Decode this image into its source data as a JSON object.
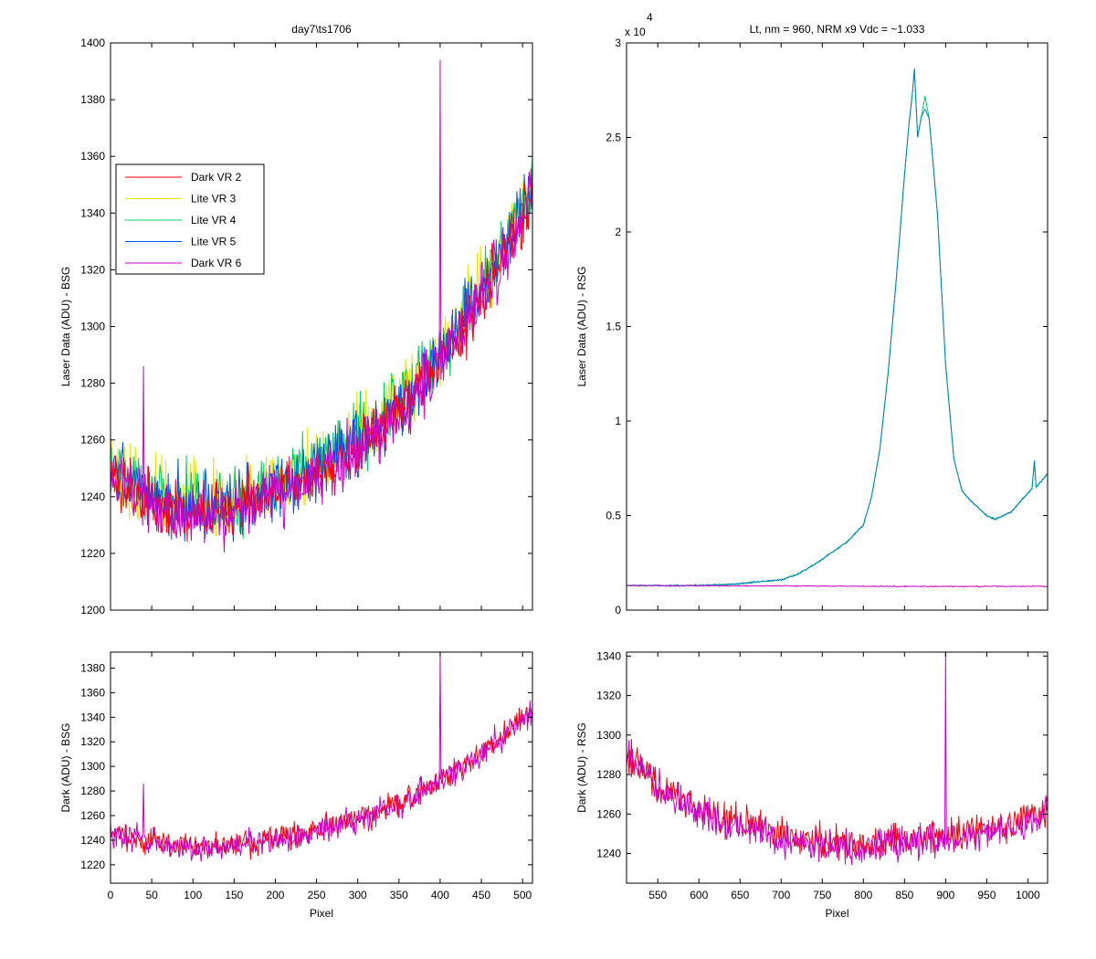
{
  "chart_data": [
    {
      "id": "top-left",
      "type": "line",
      "title": "day7\\ts1706",
      "xlabel": "",
      "ylabel": "Laser Data (ADU) - BSG",
      "xlim": [
        0,
        512
      ],
      "ylim": [
        1200,
        1400
      ],
      "yticks": [
        1200,
        1220,
        1240,
        1260,
        1280,
        1300,
        1320,
        1340,
        1360,
        1380,
        1400
      ],
      "xticks": [
        0,
        50,
        100,
        150,
        200,
        250,
        300,
        350,
        400,
        450,
        500
      ],
      "show_xtick_labels": false,
      "legend": {
        "placement": "upper-left",
        "entries": [
          {
            "name": "Dark VR 2",
            "color": "#ff0000"
          },
          {
            "name": "Lite VR 3",
            "color": "#e6e600"
          },
          {
            "name": "Lite VR 4",
            "color": "#00d060"
          },
          {
            "name": "Lite VR 5",
            "color": "#0050ff"
          },
          {
            "name": "Dark VR 6",
            "color": "#cc00cc"
          }
        ]
      },
      "series": [
        {
          "name": "Lite VR 3",
          "color": "#e6e600",
          "x": [
            0,
            40,
            80,
            120,
            160,
            200,
            240,
            280,
            320,
            360,
            400,
            440,
            480,
            512
          ],
          "values": [
            1250,
            1243,
            1240,
            1238,
            1240,
            1245,
            1250,
            1258,
            1266,
            1278,
            1292,
            1310,
            1332,
            1350
          ],
          "noise": 12,
          "spikes": []
        },
        {
          "name": "Lite VR 4",
          "color": "#00d060",
          "x": [
            0,
            40,
            80,
            120,
            160,
            200,
            240,
            280,
            320,
            360,
            400,
            440,
            480,
            512
          ],
          "values": [
            1249,
            1242,
            1239,
            1237,
            1239,
            1244,
            1249,
            1257,
            1265,
            1277,
            1291,
            1309,
            1331,
            1349
          ],
          "noise": 11,
          "spikes": []
        },
        {
          "name": "Lite VR 5",
          "color": "#0050ff",
          "x": [
            0,
            40,
            80,
            120,
            160,
            200,
            240,
            280,
            320,
            360,
            400,
            440,
            480,
            512
          ],
          "values": [
            1248,
            1241,
            1237,
            1235,
            1237,
            1242,
            1247,
            1255,
            1263,
            1275,
            1289,
            1307,
            1329,
            1347
          ],
          "noise": 11,
          "spikes": []
        },
        {
          "name": "Dark VR 2",
          "color": "#ff0000",
          "x": [
            0,
            40,
            80,
            120,
            160,
            200,
            240,
            280,
            320,
            360,
            400,
            440,
            480,
            512
          ],
          "values": [
            1247,
            1240,
            1236,
            1234,
            1236,
            1241,
            1246,
            1254,
            1262,
            1274,
            1288,
            1306,
            1328,
            1346
          ],
          "noise": 10,
          "spikes": []
        },
        {
          "name": "Dark VR 6",
          "color": "#cc00cc",
          "x": [
            0,
            40,
            80,
            120,
            160,
            200,
            240,
            280,
            320,
            360,
            400,
            440,
            480,
            512
          ],
          "values": [
            1246,
            1239,
            1235,
            1233,
            1235,
            1240,
            1245,
            1253,
            1261,
            1273,
            1287,
            1305,
            1327,
            1345
          ],
          "noise": 10,
          "spikes": [
            {
              "x": 40,
              "y": 1286
            },
            {
              "x": 400,
              "y": 1394
            }
          ]
        }
      ]
    },
    {
      "id": "top-right",
      "type": "line",
      "title": "Lt, nm = 960, NRM x9 Vdc = ~1.033",
      "xlabel": "",
      "ylabel": "Laser Data (ADU) - RSG",
      "xlim": [
        512,
        1024
      ],
      "ylim": [
        0,
        30000
      ],
      "ytick_values": [
        0,
        5000,
        10000,
        15000,
        20000,
        25000,
        30000
      ],
      "ytick_labels": [
        "0",
        "0.5",
        "1",
        "1.5",
        "2",
        "2.5",
        "3"
      ],
      "exponent_label_base": "x 10",
      "exponent_label_power": "4",
      "xticks": [
        550,
        600,
        650,
        700,
        750,
        800,
        850,
        900,
        950,
        1000
      ],
      "show_xtick_labels": false,
      "series": [
        {
          "name": "Lite VR 4",
          "color": "#00d060",
          "x": [
            512,
            600,
            650,
            700,
            720,
            740,
            760,
            780,
            800,
            810,
            820,
            830,
            840,
            850,
            855,
            860,
            862,
            866,
            870,
            875,
            880,
            890,
            900,
            910,
            920,
            930,
            940,
            950,
            960,
            980,
            1000,
            1005,
            1008,
            1010,
            1024
          ],
          "values": [
            1300,
            1300,
            1400,
            1600,
            1900,
            2400,
            3000,
            3600,
            4500,
            6000,
            8500,
            12500,
            17500,
            23000,
            25500,
            27500,
            28600,
            25000,
            26000,
            27200,
            26000,
            21000,
            13000,
            8000,
            6300,
            5800,
            5400,
            5000,
            4800,
            5200,
            6200,
            6400,
            7900,
            6500,
            7200
          ],
          "noise": 40,
          "spikes": []
        },
        {
          "name": "Lite VR 5",
          "color": "#0080c0",
          "x": [
            512,
            600,
            650,
            700,
            720,
            740,
            760,
            780,
            800,
            810,
            820,
            830,
            840,
            850,
            855,
            860,
            862,
            866,
            870,
            875,
            880,
            890,
            900,
            910,
            920,
            930,
            940,
            950,
            960,
            980,
            1000,
            1005,
            1008,
            1010,
            1024
          ],
          "values": [
            1300,
            1300,
            1400,
            1600,
            1900,
            2400,
            3000,
            3600,
            4500,
            6000,
            8500,
            12500,
            17500,
            23000,
            25500,
            27500,
            28600,
            25000,
            26000,
            26500,
            26000,
            21000,
            13000,
            8000,
            6300,
            5800,
            5400,
            5000,
            4800,
            5200,
            6200,
            6400,
            7900,
            6500,
            7200
          ],
          "noise": 40,
          "spikes": []
        },
        {
          "name": "Dark VR 6",
          "color": "#cc00cc",
          "x": [
            512,
            700,
            900,
            1024
          ],
          "values": [
            1300,
            1280,
            1250,
            1260
          ],
          "noise": 25,
          "spikes": []
        }
      ]
    },
    {
      "id": "bottom-left",
      "type": "line",
      "title": "",
      "xlabel": "Pixel",
      "ylabel": "Dark (ADU) - BSG",
      "xlim": [
        0,
        512
      ],
      "ylim": [
        1205,
        1393
      ],
      "yticks": [
        1220,
        1240,
        1260,
        1280,
        1300,
        1320,
        1340,
        1360,
        1380
      ],
      "xticks": [
        0,
        50,
        100,
        150,
        200,
        250,
        300,
        350,
        400,
        450,
        500
      ],
      "show_xtick_labels": true,
      "series": [
        {
          "name": "Dark VR 2",
          "color": "#ff0000",
          "x": [
            0,
            40,
            80,
            120,
            160,
            200,
            240,
            280,
            320,
            360,
            400,
            440,
            480,
            512
          ],
          "values": [
            1247,
            1240,
            1236,
            1234,
            1236,
            1241,
            1246,
            1254,
            1262,
            1274,
            1288,
            1306,
            1328,
            1346
          ],
          "noise": 10,
          "spikes": []
        },
        {
          "name": "Dark VR 6",
          "color": "#cc00cc",
          "x": [
            0,
            40,
            80,
            120,
            160,
            200,
            240,
            280,
            320,
            360,
            400,
            440,
            480,
            512
          ],
          "values": [
            1246,
            1239,
            1235,
            1233,
            1235,
            1240,
            1245,
            1253,
            1261,
            1273,
            1287,
            1305,
            1327,
            1345
          ],
          "noise": 10,
          "spikes": [
            {
              "x": 40,
              "y": 1286
            },
            {
              "x": 400,
              "y": 1393
            }
          ]
        }
      ]
    },
    {
      "id": "bottom-right",
      "type": "line",
      "title": "",
      "xlabel": "Pixel",
      "ylabel": "Dark (ADU) - RSG",
      "xlim": [
        512,
        1024
      ],
      "ylim": [
        1225,
        1342
      ],
      "yticks": [
        1240,
        1260,
        1280,
        1300,
        1320,
        1340
      ],
      "xticks": [
        550,
        600,
        650,
        700,
        750,
        800,
        850,
        900,
        950,
        1000
      ],
      "show_xtick_labels": true,
      "series": [
        {
          "name": "Dark VR 2",
          "color": "#ff0000",
          "x": [
            512,
            530,
            550,
            600,
            650,
            700,
            750,
            800,
            850,
            900,
            950,
            1000,
            1024
          ],
          "values": [
            1292,
            1284,
            1274,
            1262,
            1255,
            1250,
            1246,
            1245,
            1247,
            1250,
            1252,
            1258,
            1264
          ],
          "noise": 8,
          "spikes": []
        },
        {
          "name": "Dark VR 6",
          "color": "#cc00cc",
          "x": [
            512,
            530,
            550,
            600,
            650,
            700,
            750,
            800,
            850,
            900,
            950,
            1000,
            1024
          ],
          "values": [
            1290,
            1282,
            1272,
            1260,
            1253,
            1248,
            1244,
            1243,
            1245,
            1248,
            1250,
            1256,
            1262
          ],
          "noise": 8,
          "spikes": [
            {
              "x": 900,
              "y": 1342
            }
          ]
        }
      ]
    }
  ]
}
